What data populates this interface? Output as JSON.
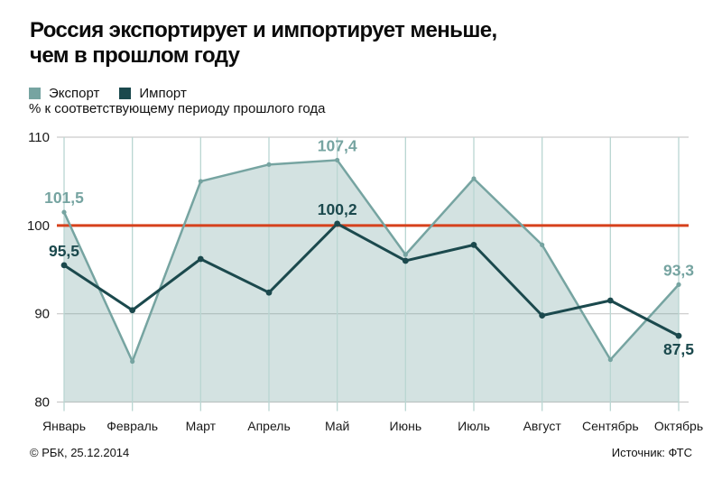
{
  "title": {
    "line1": "Россия экспортирует и импортирует меньше,",
    "line2": "чем в прошлом году"
  },
  "legend": {
    "export": "Экспорт",
    "import": "Импорт"
  },
  "subtitle": "% к соответствующему периоду прошлого года",
  "footer": {
    "left": "© РБК, 25.12.2014",
    "right": "Источник: ФТС"
  },
  "colors": {
    "export": "#76A4A1",
    "export_fill": "#76A4A1",
    "export_fill_opacity": 0.32,
    "import": "#1B494D",
    "reference": "#D6411C",
    "grid_horizontal": "#C9C9C9",
    "grid_vertical": "#B9D6D2",
    "axis_text": "#1A1A1A"
  },
  "chart_data": {
    "type": "line",
    "title": "Россия экспортирует и импортирует меньше, чем в прошлом году",
    "subtitle": "% к соответствующему периоду прошлого года",
    "categories": [
      "Январь",
      "Февраль",
      "Март",
      "Апрель",
      "Май",
      "Июнь",
      "Июль",
      "Август",
      "Сентябрь",
      "Октябрь"
    ],
    "series": [
      {
        "name": "Экспорт",
        "color_key": "export",
        "area": true,
        "values": [
          101.5,
          84.6,
          105.0,
          106.9,
          107.4,
          96.7,
          105.3,
          97.8,
          84.8,
          93.3
        ]
      },
      {
        "name": "Импорт",
        "color_key": "import",
        "area": false,
        "values": [
          95.5,
          90.4,
          96.2,
          92.4,
          100.2,
          96.0,
          97.8,
          89.8,
          91.5,
          87.5
        ]
      }
    ],
    "ylim": [
      80,
      110
    ],
    "yticks": [
      110,
      100,
      90,
      80
    ],
    "reference_line": 100,
    "grid": {
      "horizontal": true,
      "vertical": true
    },
    "legend_position": "top-left",
    "annotations": [
      {
        "series": 0,
        "index": 0,
        "text": "101,5",
        "placement": "above"
      },
      {
        "series": 0,
        "index": 4,
        "text": "107,4",
        "placement": "above"
      },
      {
        "series": 0,
        "index": 9,
        "text": "93,3",
        "placement": "above"
      },
      {
        "series": 1,
        "index": 0,
        "text": "95,5",
        "placement": "above"
      },
      {
        "series": 1,
        "index": 4,
        "text": "100,2",
        "placement": "above"
      },
      {
        "series": 1,
        "index": 9,
        "text": "87,5",
        "placement": "below"
      }
    ]
  }
}
